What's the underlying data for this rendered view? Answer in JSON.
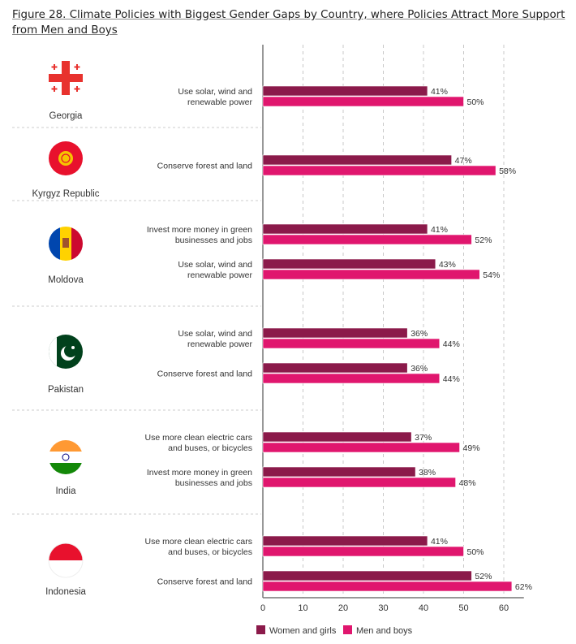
{
  "chart_data": {
    "type": "bar",
    "orientation": "horizontal",
    "title": "Figure 28. Climate Policies with Biggest Gender Gaps by Country, where Policies Attract More Support from Men and Boys",
    "xlim": [
      0,
      65
    ],
    "xticks": [
      "0",
      "10",
      "20",
      "30",
      "40",
      "50",
      "60"
    ],
    "grid": "vertical dashed",
    "legend_placement": "bottom",
    "series": [
      {
        "name": "Women and girls",
        "color": "#8B1A4A"
      },
      {
        "name": "Men and boys",
        "color": "#E0166E"
      }
    ],
    "groups": [
      {
        "country": "Georgia",
        "flag": "georgia-flag",
        "items": [
          {
            "label": [
              "Use solar, wind and",
              "renewable power"
            ],
            "values": [
              41,
              50
            ],
            "labels": [
              "41%",
              "50%"
            ]
          }
        ]
      },
      {
        "country": "Kyrgyz Republic",
        "flag": "kyrgyz-flag",
        "items": [
          {
            "label": [
              "Conserve forest and land"
            ],
            "values": [
              47,
              58
            ],
            "labels": [
              "47%",
              "58%"
            ]
          }
        ]
      },
      {
        "country": "Moldova",
        "flag": "moldova-flag",
        "items": [
          {
            "label": [
              "Invest more money in green",
              "businesses and jobs"
            ],
            "values": [
              41,
              52
            ],
            "labels": [
              "41%",
              "52%"
            ]
          },
          {
            "label": [
              "Use solar, wind and",
              "renewable power"
            ],
            "values": [
              43,
              54
            ],
            "labels": [
              "43%",
              "54%"
            ]
          }
        ]
      },
      {
        "country": "Pakistan",
        "flag": "pakistan-flag",
        "items": [
          {
            "label": [
              "Use solar, wind and",
              "renewable power"
            ],
            "values": [
              36,
              44
            ],
            "labels": [
              "36%",
              "44%"
            ]
          },
          {
            "label": [
              "Conserve forest and land"
            ],
            "values": [
              36,
              44
            ],
            "labels": [
              "36%",
              "44%"
            ]
          }
        ]
      },
      {
        "country": "India",
        "flag": "india-flag",
        "items": [
          {
            "label": [
              "Use more clean electric cars",
              "and buses, or bicycles"
            ],
            "values": [
              37,
              49
            ],
            "labels": [
              "37%",
              "49%"
            ]
          },
          {
            "label": [
              "Invest more money in green",
              "businesses and jobs"
            ],
            "values": [
              38,
              48
            ],
            "labels": [
              "38%",
              "48%"
            ]
          }
        ]
      },
      {
        "country": "Indonesia",
        "flag": "indonesia-flag",
        "items": [
          {
            "label": [
              "Use more clean electric cars",
              "and buses, or bicycles"
            ],
            "values": [
              41,
              50
            ],
            "labels": [
              "41%",
              "50%"
            ]
          },
          {
            "label": [
              "Conserve forest and land"
            ],
            "values": [
              52,
              62
            ],
            "labels": [
              "52%",
              "62%"
            ]
          }
        ]
      }
    ]
  }
}
